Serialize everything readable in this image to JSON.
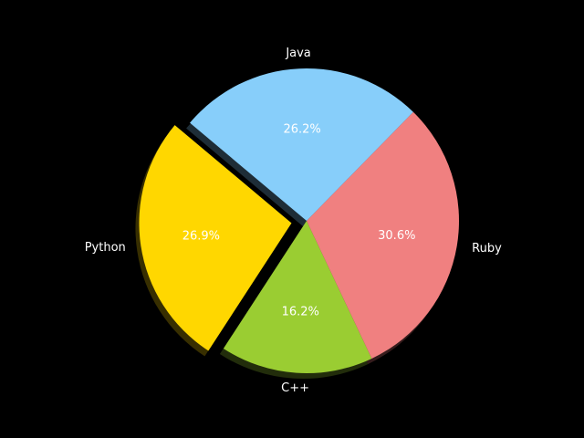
{
  "chart_data": {
    "type": "pie",
    "categories": [
      "Python",
      "C++",
      "Ruby",
      "Java"
    ],
    "values": [
      26.9,
      16.2,
      30.6,
      26.2
    ],
    "percent_labels": [
      "26.9%",
      "16.2%",
      "30.6%",
      "26.2%"
    ],
    "colors": [
      "#ffd700",
      "#9acd32",
      "#f08080",
      "#87cefa"
    ],
    "explode": [
      0.1,
      0,
      0,
      0
    ],
    "shadow": true,
    "start_angle_deg": 140,
    "background": "#000000",
    "label_color": "#ffffff"
  }
}
